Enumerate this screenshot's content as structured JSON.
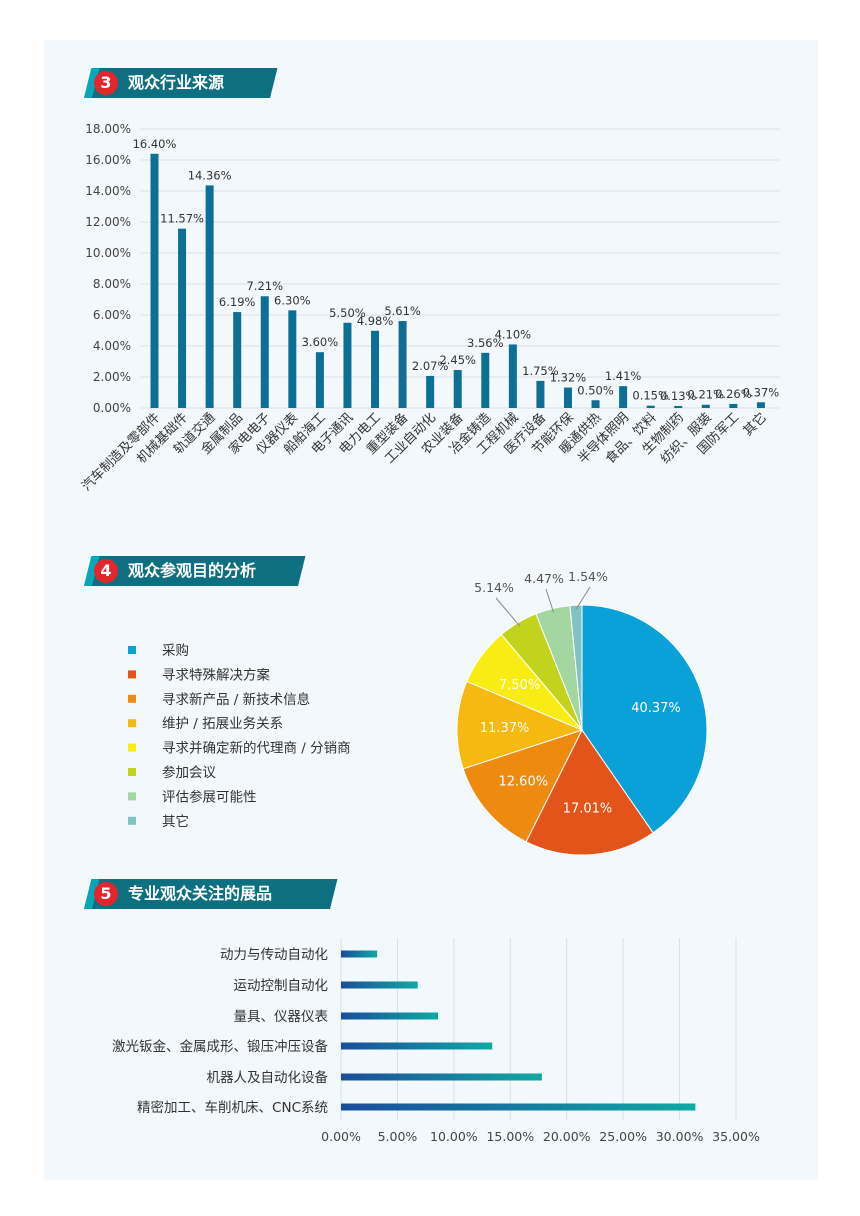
{
  "sections": [
    {
      "number": "3",
      "title": "观众行业来源"
    },
    {
      "number": "4",
      "title": "观众参观目的分析"
    },
    {
      "number": "5",
      "title": "专业观众关注的展品"
    }
  ],
  "chart_data": [
    {
      "type": "bar",
      "orientation": "vertical",
      "categories": [
        "汽车制造及零部件",
        "机械基础件",
        "轨道交通",
        "金属制品",
        "家电电子",
        "仪器仪表",
        "船舶海工",
        "电子通讯",
        "电力电工",
        "重型装备",
        "工业自动化",
        "农业装备",
        "冶金铸造",
        "工程机械",
        "医疗设备",
        "节能环保",
        "暖通供热",
        "半导体照明",
        "食品、饮料",
        "生物制药",
        "纺织、服装",
        "国防军工",
        "其它"
      ],
      "values": [
        16.4,
        11.57,
        14.36,
        6.19,
        7.21,
        6.3,
        3.6,
        5.5,
        4.98,
        5.61,
        2.07,
        2.45,
        3.56,
        4.1,
        1.75,
        1.32,
        0.5,
        1.41,
        0.15,
        0.13,
        0.21,
        0.26,
        0.37
      ],
      "value_labels": [
        "16.40%",
        "11.57%",
        "14.36%",
        "6.19%",
        "7.21%",
        "6.30%",
        "3.60%",
        "5.50%",
        "4.98%",
        "5.61%",
        "2.07%",
        "2.45%",
        "3.56%",
        "4.10%",
        "1.75%",
        "1.32%",
        "0.50%",
        "1.41%",
        "0.15%",
        "0.13%",
        "0.21%",
        "0.26%",
        "0.37%"
      ],
      "y_ticks": [
        "0.00%",
        "2.00%",
        "4.00%",
        "6.00%",
        "8.00%",
        "10.00%",
        "12.00%",
        "14.00%",
        "16.00%",
        "18.00%"
      ],
      "ylim": [
        0,
        18
      ],
      "grid": true,
      "bar_color": "#0e6f96"
    },
    {
      "type": "pie",
      "labels": [
        "采购",
        "寻求特殊解决方案",
        "寻求新产品 / 新技术信息",
        "维护 / 拓展业务关系",
        "寻求并确定新的代理商 / 分销商",
        "参加会议",
        "评估参展可能性",
        "其它"
      ],
      "values": [
        40.37,
        17.01,
        12.6,
        11.37,
        7.5,
        5.14,
        4.47,
        1.54
      ],
      "value_labels": [
        "40.37%",
        "17.01%",
        "12.60%",
        "11.37%",
        "7.50%",
        "5.14%",
        "4.47%",
        "1.54%"
      ],
      "colors": [
        "#0aa1d8",
        "#e2541a",
        "#ef8a10",
        "#f5b90f",
        "#f8ec13",
        "#c2d31d",
        "#a3d6a0",
        "#7fc4c2"
      ],
      "legend_placement": "left"
    },
    {
      "type": "bar",
      "orientation": "horizontal",
      "categories": [
        "动力与传动自动化",
        "运动控制自动化",
        "量具、仪器仪表",
        "激光钣金、金属成形、锻压冲压设备",
        "机器人及自动化设备",
        "精密加工、车削机床、CNC系统"
      ],
      "values": [
        3.2,
        6.8,
        8.6,
        13.4,
        17.8,
        31.4
      ],
      "x_ticks": [
        "0.00%",
        "5.00%",
        "10.00%",
        "15.00%",
        "20.00%",
        "25.00%",
        "30.00%",
        "35.00%"
      ],
      "xlim": [
        0,
        35
      ],
      "grid": true,
      "colors": {
        "start": "#1a4d9c",
        "end": "#10a9a4"
      }
    }
  ]
}
